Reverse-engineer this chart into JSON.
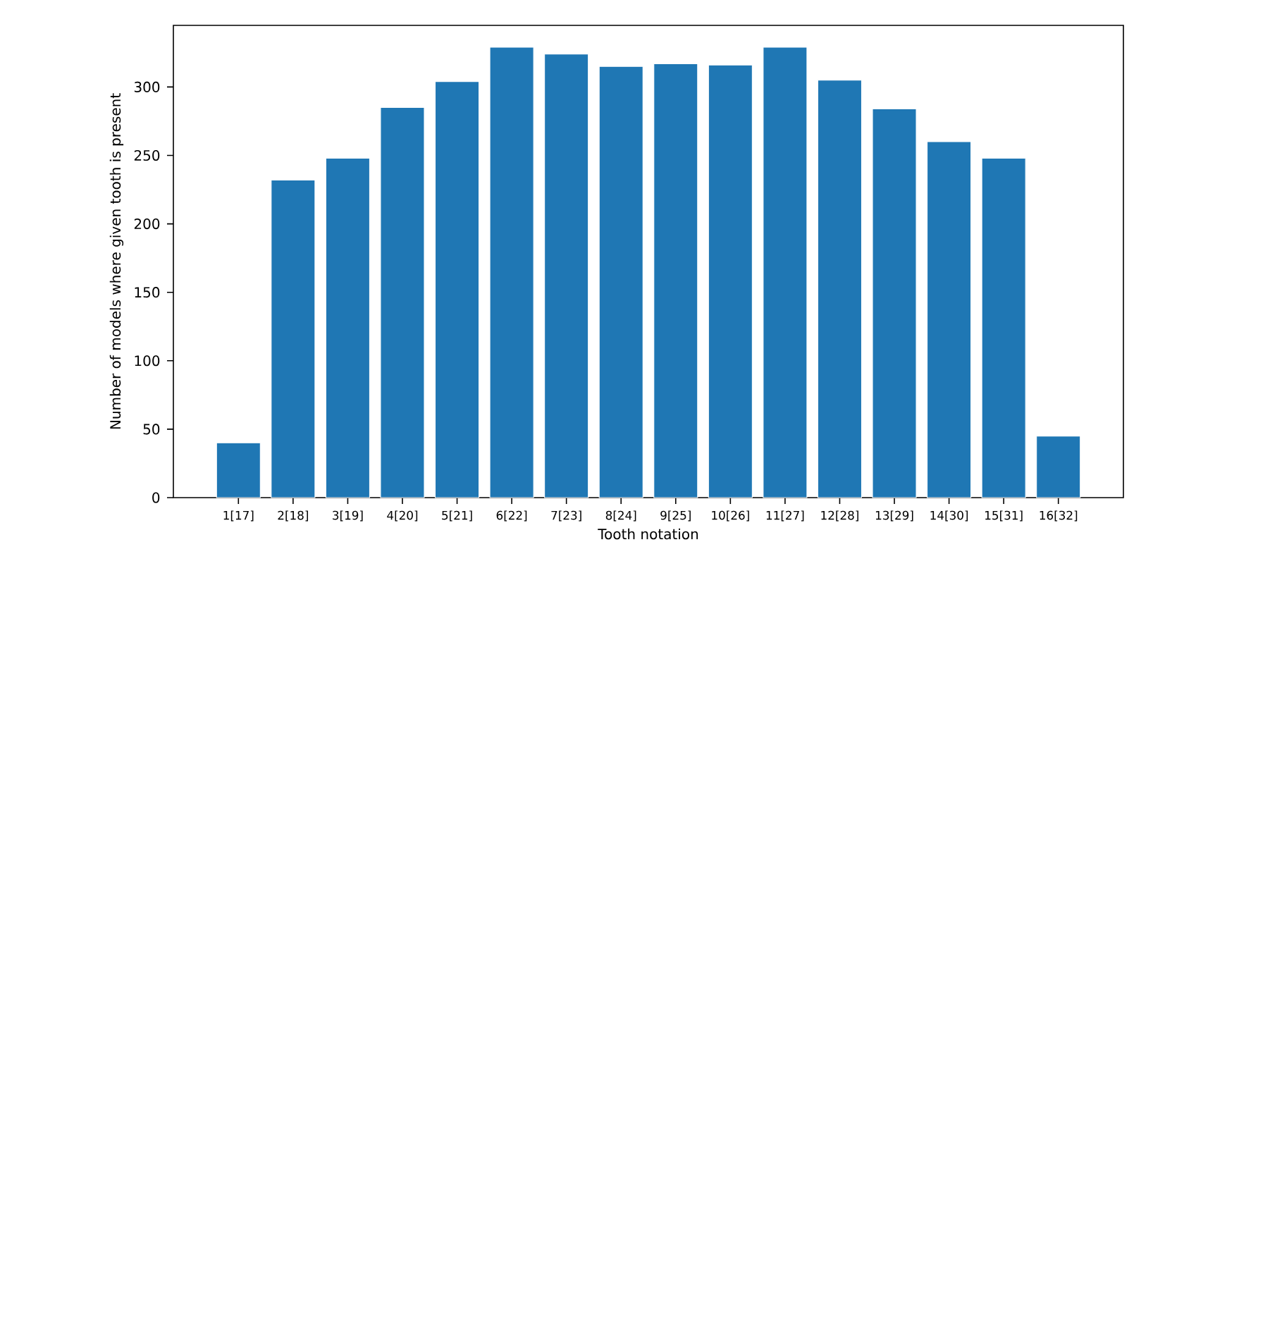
{
  "chart_data": {
    "type": "bar",
    "xlabel": "Tooth notation",
    "ylabel": "Number of models where given tooth is present",
    "categories": [
      "1[17]",
      "2[18]",
      "3[19]",
      "4[20]",
      "5[21]",
      "6[22]",
      "7[23]",
      "8[24]",
      "9[25]",
      "10[26]",
      "11[27]",
      "12[28]",
      "13[29]",
      "14[30]",
      "15[31]",
      "16[32]"
    ],
    "values": [
      40,
      232,
      248,
      285,
      304,
      329,
      324,
      315,
      317,
      316,
      329,
      305,
      284,
      260,
      248,
      45
    ],
    "color": "#1f77b4",
    "ylim": [
      0,
      345
    ],
    "yticks": [
      0,
      50,
      100,
      150,
      200,
      250,
      300
    ]
  }
}
